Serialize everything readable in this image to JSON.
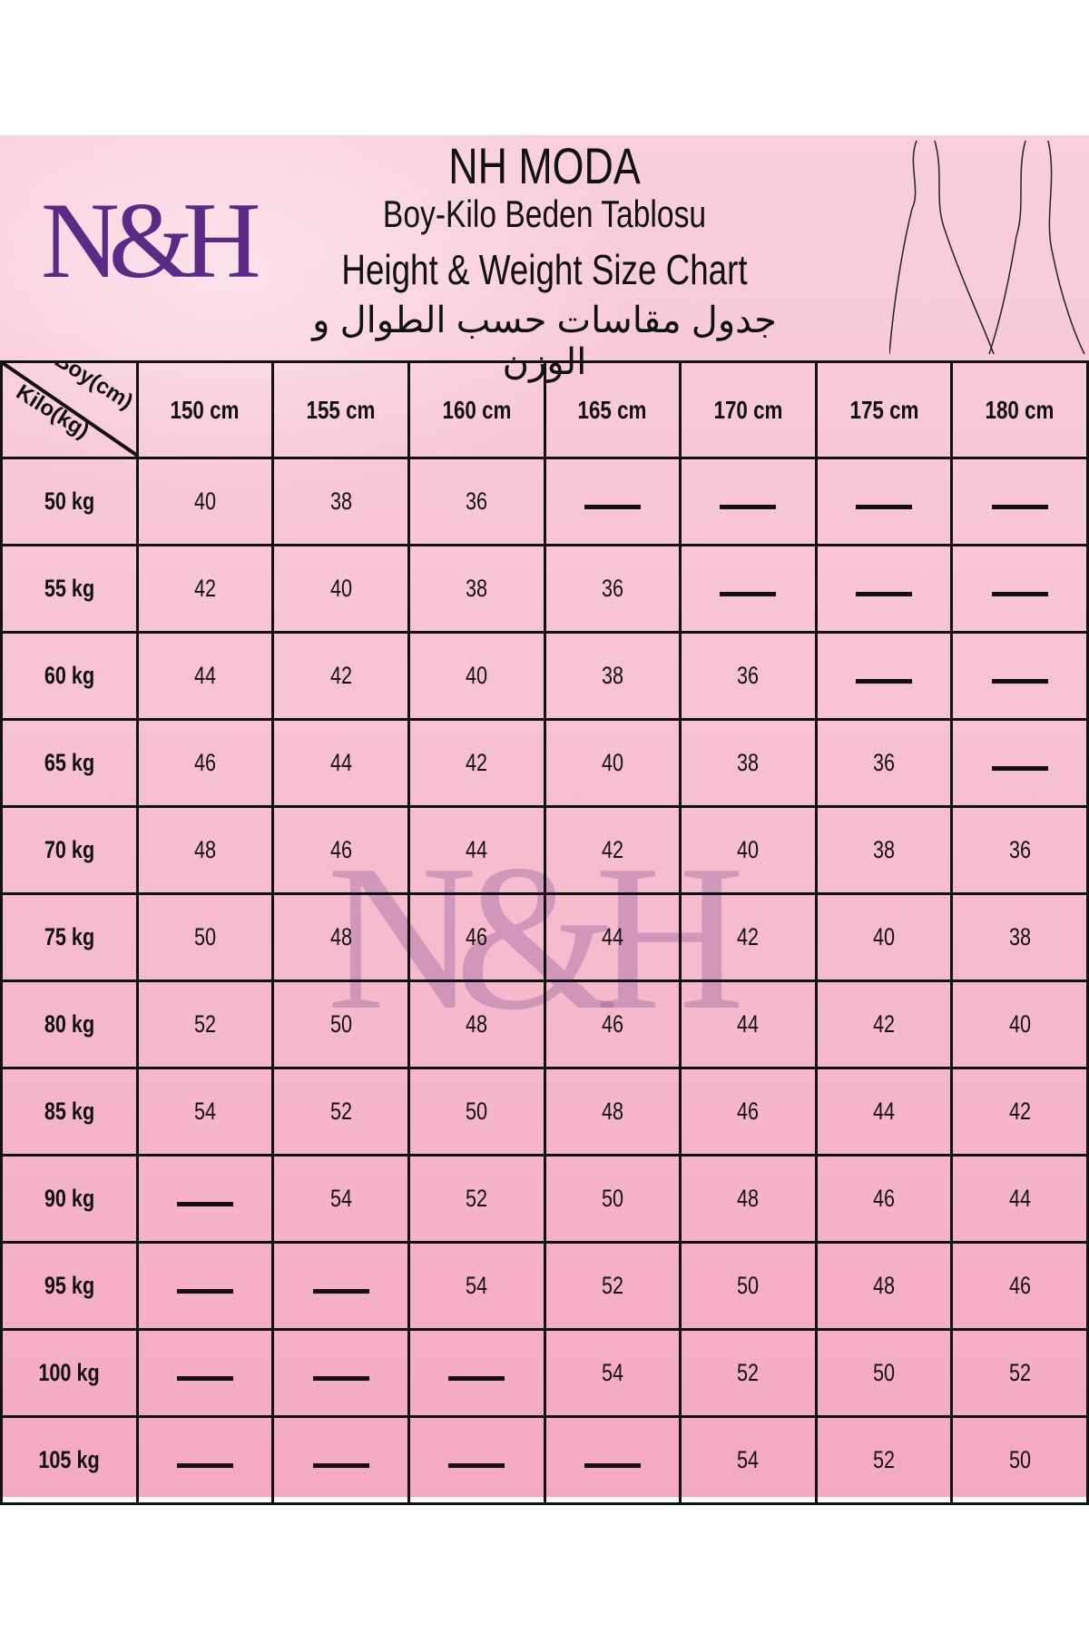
{
  "brand": {
    "logo_text": "N&H",
    "logo_color": "#5b2a86"
  },
  "header": {
    "title": "NH MODA",
    "subtitle_tr": "Boy-Kilo Beden Tablosu",
    "subtitle_en": "Height & Weight Size Chart",
    "subtitle_ar": "جدول مقاسات حسب الطوال و الوزن"
  },
  "table": {
    "corner_top": "Boy(cm)",
    "corner_bottom": "Kilo(kg)",
    "columns": [
      "150 cm",
      "155 cm",
      "160 cm",
      "165 cm",
      "170 cm",
      "175 cm",
      "180 cm"
    ],
    "rows": [
      {
        "label": "50 kg",
        "cells": [
          "40",
          "38",
          "36",
          "—",
          "—",
          "—",
          "—"
        ]
      },
      {
        "label": "55 kg",
        "cells": [
          "42",
          "40",
          "38",
          "36",
          "—",
          "—",
          "—"
        ]
      },
      {
        "label": "60 kg",
        "cells": [
          "44",
          "42",
          "40",
          "38",
          "36",
          "—",
          "—"
        ]
      },
      {
        "label": "65 kg",
        "cells": [
          "46",
          "44",
          "42",
          "40",
          "38",
          "36",
          "—"
        ]
      },
      {
        "label": "70 kg",
        "cells": [
          "48",
          "46",
          "44",
          "42",
          "40",
          "38",
          "36"
        ]
      },
      {
        "label": "75 kg",
        "cells": [
          "50",
          "48",
          "46",
          "44",
          "42",
          "40",
          "38"
        ]
      },
      {
        "label": "80 kg",
        "cells": [
          "52",
          "50",
          "48",
          "46",
          "44",
          "42",
          "40"
        ]
      },
      {
        "label": "85 kg",
        "cells": [
          "54",
          "52",
          "50",
          "48",
          "46",
          "44",
          "42"
        ]
      },
      {
        "label": "90 kg",
        "cells": [
          "—",
          "54",
          "52",
          "50",
          "48",
          "46",
          "44"
        ]
      },
      {
        "label": "95 kg",
        "cells": [
          "—",
          "—",
          "54",
          "52",
          "50",
          "48",
          "46"
        ]
      },
      {
        "label": "100 kg",
        "cells": [
          "—",
          "—",
          "—",
          "54",
          "52",
          "50",
          "52"
        ]
      },
      {
        "label": "105 kg",
        "cells": [
          "—",
          "—",
          "—",
          "—",
          "54",
          "52",
          "50"
        ]
      }
    ]
  }
}
